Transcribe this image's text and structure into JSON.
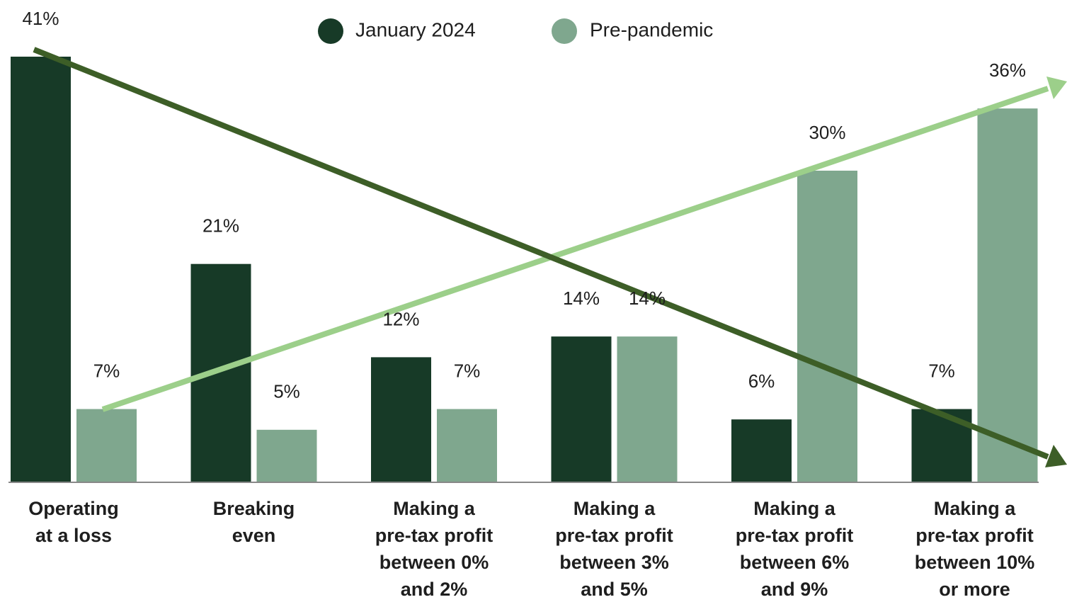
{
  "chart_data": {
    "type": "bar",
    "categories": [
      [
        "Operating",
        "at a loss"
      ],
      [
        "Breaking",
        "even"
      ],
      [
        "Making a",
        "pre-tax profit",
        "between 0%",
        "and 2%"
      ],
      [
        "Making a",
        "pre-tax profit",
        "between 3%",
        "and 5%"
      ],
      [
        "Making a",
        "pre-tax profit",
        "between 6%",
        "and 9%"
      ],
      [
        "Making a",
        "pre-tax profit",
        "between 10%",
        "or more"
      ]
    ],
    "series": [
      {
        "name": "January 2024",
        "color": "#173a27",
        "values": [
          41,
          21,
          12,
          14,
          6,
          7
        ],
        "value_labels": [
          "41%",
          "21%",
          "12%",
          "14%",
          "6%",
          "7%"
        ]
      },
      {
        "name": "Pre-pandemic",
        "color": "#7fa78e",
        "values": [
          7,
          5,
          7,
          14,
          30,
          36
        ],
        "value_labels": [
          "7%",
          "5%",
          "7%",
          "14%",
          "30%",
          "36%"
        ]
      }
    ],
    "ylim": [
      0,
      41
    ]
  }
}
